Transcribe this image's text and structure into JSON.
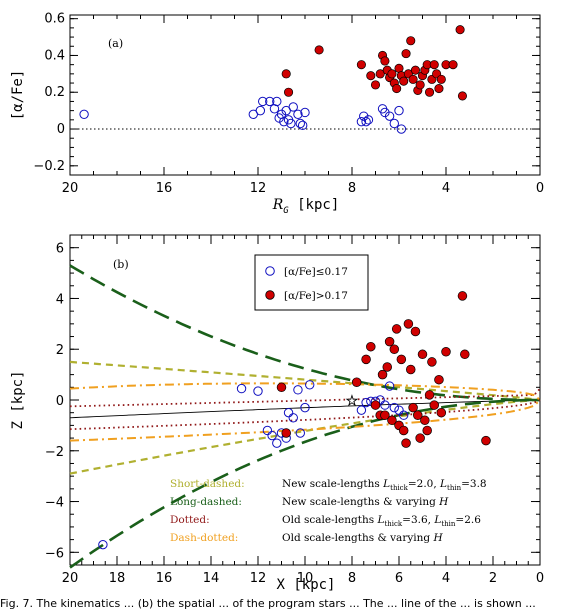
{
  "chart_data": [
    {
      "type": "scatter",
      "panel_label": "(a)",
      "xlabel": "R_G [kpc]",
      "ylabel": "[α/Fe]",
      "xlim": [
        20,
        0
      ],
      "ylim": [
        -0.25,
        0.62
      ],
      "x_ticks": [
        20,
        16,
        12,
        8,
        4,
        0
      ],
      "y_ticks": [
        -0.2,
        0,
        0.2,
        0.4,
        0.6
      ],
      "x_tick_labels": [
        "20",
        "16",
        "12",
        "8",
        "4",
        "0"
      ],
      "y_tick_labels": [
        "−0.2",
        "0",
        "0.2",
        "0.4",
        "0.6"
      ],
      "reference_line": {
        "y": 0,
        "style": "dotted"
      },
      "series": [
        {
          "marker": "open-circle",
          "color": "#1010c0",
          "points": [
            [
              19.4,
              0.08
            ],
            [
              12.2,
              0.08
            ],
            [
              11.9,
              0.1
            ],
            [
              11.8,
              0.15
            ],
            [
              11.5,
              0.15
            ],
            [
              11.3,
              0.11
            ],
            [
              11.2,
              0.15
            ],
            [
              11.1,
              0.06
            ],
            [
              11.0,
              0.08
            ],
            [
              10.9,
              0.04
            ],
            [
              10.8,
              0.1
            ],
            [
              10.7,
              0.05
            ],
            [
              10.6,
              0.03
            ],
            [
              10.5,
              0.12
            ],
            [
              10.3,
              0.08
            ],
            [
              10.2,
              0.03
            ],
            [
              10.1,
              0.02
            ],
            [
              10.0,
              0.09
            ],
            [
              7.6,
              0.04
            ],
            [
              7.5,
              0.07
            ],
            [
              7.4,
              0.04
            ],
            [
              7.3,
              0.05
            ],
            [
              6.7,
              0.11
            ],
            [
              6.6,
              0.09
            ],
            [
              6.4,
              0.07
            ],
            [
              6.2,
              0.03
            ],
            [
              6.0,
              0.1
            ],
            [
              5.9,
              0.0
            ]
          ]
        },
        {
          "marker": "filled-circle",
          "color": "#d00000",
          "points": [
            [
              10.8,
              0.3
            ],
            [
              10.7,
              0.2
            ],
            [
              9.4,
              0.43
            ],
            [
              7.6,
              0.35
            ],
            [
              7.2,
              0.29
            ],
            [
              7.0,
              0.24
            ],
            [
              6.8,
              0.3
            ],
            [
              6.7,
              0.4
            ],
            [
              6.6,
              0.37
            ],
            [
              6.5,
              0.32
            ],
            [
              6.4,
              0.28
            ],
            [
              6.3,
              0.3
            ],
            [
              6.2,
              0.25
            ],
            [
              6.1,
              0.22
            ],
            [
              6.0,
              0.33
            ],
            [
              5.9,
              0.29
            ],
            [
              5.8,
              0.26
            ],
            [
              5.7,
              0.41
            ],
            [
              5.6,
              0.3
            ],
            [
              5.5,
              0.48
            ],
            [
              5.4,
              0.27
            ],
            [
              5.3,
              0.32
            ],
            [
              5.2,
              0.21
            ],
            [
              5.1,
              0.24
            ],
            [
              5.0,
              0.29
            ],
            [
              4.9,
              0.32
            ],
            [
              4.8,
              0.35
            ],
            [
              4.7,
              0.2
            ],
            [
              4.6,
              0.27
            ],
            [
              4.5,
              0.35
            ],
            [
              4.4,
              0.3
            ],
            [
              4.3,
              0.22
            ],
            [
              4.2,
              0.27
            ],
            [
              4.0,
              0.35
            ],
            [
              3.7,
              0.35
            ],
            [
              3.4,
              0.54
            ],
            [
              3.3,
              0.18
            ]
          ]
        }
      ]
    },
    {
      "type": "scatter",
      "panel_label": "(b)",
      "xlabel": "X [kpc]",
      "ylabel": "Z [kpc]",
      "xlim": [
        20,
        0
      ],
      "ylim": [
        -6.5,
        6.5
      ],
      "x_ticks": [
        20,
        18,
        16,
        14,
        12,
        10,
        8,
        6,
        4,
        2,
        0
      ],
      "y_ticks": [
        -6,
        -4,
        -2,
        0,
        2,
        4,
        6
      ],
      "x_tick_labels": [
        "20",
        "18",
        "16",
        "14",
        "12",
        "10",
        "8",
        "6",
        "4",
        "2",
        "0"
      ],
      "y_tick_labels": [
        "−6",
        "−4",
        "−2",
        "0",
        "2",
        "4",
        "6"
      ],
      "legend": {
        "placement": "top-center",
        "entries": [
          {
            "label": "[α/Fe]≤0.17",
            "marker": "open-circle",
            "color": "#1010c0"
          },
          {
            "label": "[α/Fe]>0.17",
            "marker": "filled-circle",
            "color": "#d00000"
          }
        ]
      },
      "series": [
        {
          "name": "[α/Fe]≤0.17",
          "marker": "open-circle",
          "color": "#1010c0",
          "points": [
            [
              18.6,
              -5.7
            ],
            [
              12.7,
              0.45
            ],
            [
              12.0,
              0.35
            ],
            [
              11.6,
              -1.2
            ],
            [
              11.4,
              -1.4
            ],
            [
              11.2,
              -1.7
            ],
            [
              11.0,
              -1.3
            ],
            [
              10.8,
              -1.5
            ],
            [
              10.7,
              -0.5
            ],
            [
              10.5,
              -0.7
            ],
            [
              10.3,
              0.4
            ],
            [
              10.2,
              -1.3
            ],
            [
              10.0,
              -0.3
            ],
            [
              9.8,
              0.6
            ],
            [
              7.6,
              -0.4
            ],
            [
              7.4,
              -0.1
            ],
            [
              7.2,
              -0.05
            ],
            [
              7.0,
              -0.05
            ],
            [
              6.8,
              0.0
            ],
            [
              6.6,
              -0.2
            ],
            [
              6.4,
              0.55
            ],
            [
              6.2,
              -0.3
            ],
            [
              6.0,
              -0.4
            ],
            [
              5.8,
              -0.6
            ]
          ]
        },
        {
          "name": "[α/Fe]>0.17",
          "marker": "filled-circle",
          "color": "#d00000",
          "points": [
            [
              11.0,
              0.5
            ],
            [
              10.8,
              -1.3
            ],
            [
              7.8,
              0.7
            ],
            [
              7.4,
              1.6
            ],
            [
              7.2,
              2.1
            ],
            [
              7.0,
              -0.2
            ],
            [
              6.8,
              -0.6
            ],
            [
              6.7,
              1.0
            ],
            [
              6.6,
              -0.6
            ],
            [
              6.5,
              1.3
            ],
            [
              6.4,
              2.3
            ],
            [
              6.3,
              -0.8
            ],
            [
              6.2,
              2.0
            ],
            [
              6.1,
              2.8
            ],
            [
              6.0,
              -1.0
            ],
            [
              5.9,
              1.6
            ],
            [
              5.8,
              -1.2
            ],
            [
              5.7,
              -1.7
            ],
            [
              5.6,
              3.0
            ],
            [
              5.5,
              1.2
            ],
            [
              5.4,
              -0.3
            ],
            [
              5.3,
              2.7
            ],
            [
              5.2,
              -0.6
            ],
            [
              5.1,
              -1.5
            ],
            [
              5.0,
              1.8
            ],
            [
              4.9,
              -0.8
            ],
            [
              4.8,
              -1.2
            ],
            [
              4.7,
              0.2
            ],
            [
              4.6,
              1.5
            ],
            [
              4.5,
              -0.2
            ],
            [
              4.3,
              0.8
            ],
            [
              4.2,
              -0.5
            ],
            [
              4.0,
              1.9
            ],
            [
              3.3,
              4.1
            ],
            [
              3.2,
              1.8
            ],
            [
              2.3,
              -1.6
            ]
          ]
        }
      ],
      "sun": {
        "x": 8.0,
        "z": 0.0
      },
      "curves": [
        {
          "style": "solid",
          "color": "#000000"
        },
        {
          "style": "short-dashed",
          "color": "#b0b030"
        },
        {
          "style": "long-dashed",
          "color": "#1a5f1a"
        },
        {
          "style": "dotted",
          "color": "#901818"
        },
        {
          "style": "dash-dotted",
          "color": "#f0a020"
        }
      ],
      "annotations": [
        {
          "style": "Short-dashed:",
          "color": "#b0b030",
          "text": "New scale-lengths L_thick=2.0, L_thin=3.8"
        },
        {
          "style": "Long-dashed:",
          "color": "#1a5f1a",
          "text": "New scale-lengths & varying H"
        },
        {
          "style": "Dotted:",
          "color": "#901818",
          "text": "Old scale-lengths L_thick=3.6, L_thin=2.6"
        },
        {
          "style": "Dash-dotted:",
          "color": "#f0a020",
          "text": "Old scale-lengths & varying H"
        }
      ]
    }
  ],
  "caption": "Fig. 7. The kinematics ... (b) the spatial ... of the program stars ... The ... line of the ... is shown ..."
}
